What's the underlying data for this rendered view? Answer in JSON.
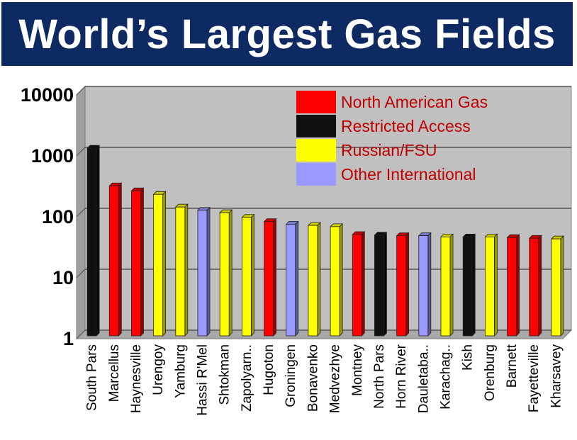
{
  "title": "World’s Largest Gas Fields",
  "colors": {
    "north_american": "#ff0000",
    "restricted": "#111111",
    "russian": "#ffff00",
    "other": "#9999ff",
    "banner": "#0d2a63",
    "plot_bg": "#c0c0c0",
    "legend_text": "#c00000"
  },
  "chart_data": {
    "type": "bar",
    "y_scale": "log",
    "ylim": [
      1,
      10000
    ],
    "ytick_labels": [
      "1",
      "10",
      "100",
      "1000",
      "10000"
    ],
    "ytick_values": [
      1,
      10,
      100,
      1000,
      10000
    ],
    "grid": true,
    "legend_placement": "top-right",
    "legend": [
      {
        "key": "north_american",
        "label": "North American Gas"
      },
      {
        "key": "restricted",
        "label": "Restricted Access"
      },
      {
        "key": "russian",
        "label": "Russian/FSU"
      },
      {
        "key": "other",
        "label": "Other International"
      }
    ],
    "categories": [
      "South Pars",
      "Marcellus",
      "Haynesville",
      "Urengoy",
      "Yamburg",
      "Hassi R'Mel",
      "Shtokman",
      "Zapolyarn..",
      "Hugoton",
      "Groningen",
      "Bonavenko",
      "Medvezhye",
      "Montney",
      "North Pars",
      "Horn River",
      "Dauletaba..",
      "Karachag..",
      "Kish",
      "Orenburg",
      "Barnett",
      "Fayetteville",
      "Kharsavey"
    ],
    "values": [
      1200,
      290,
      240,
      210,
      130,
      115,
      105,
      88,
      75,
      68,
      65,
      62,
      46,
      45,
      44,
      44,
      42,
      42,
      42,
      41,
      40,
      39
    ],
    "groups": [
      "restricted",
      "north_american",
      "north_american",
      "russian",
      "russian",
      "other",
      "russian",
      "russian",
      "north_american",
      "other",
      "russian",
      "russian",
      "north_american",
      "restricted",
      "north_american",
      "other",
      "russian",
      "restricted",
      "russian",
      "north_american",
      "north_american",
      "russian"
    ]
  }
}
